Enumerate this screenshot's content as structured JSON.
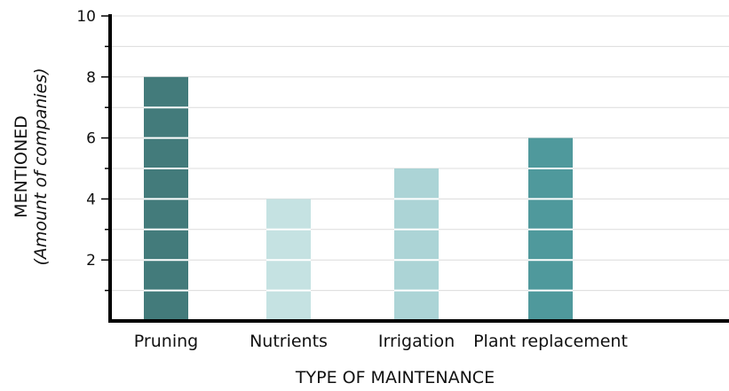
{
  "chart_data": {
    "type": "bar",
    "categories": [
      "Pruning",
      "Nutrients",
      "Irrigation",
      "Plant replacement"
    ],
    "values": [
      8,
      4,
      5,
      6
    ],
    "colors": [
      "#437b7b",
      "#c5e2e2",
      "#acd4d6",
      "#4f999c"
    ],
    "title": "",
    "xlabel": "TYPE OF MAINTENANCE",
    "ylabel_line1": "MENTIONED",
    "ylabel_line2": "(Amount of companies)",
    "ylim": [
      0,
      10
    ],
    "yticks": [
      2,
      4,
      6,
      8,
      10
    ],
    "grid": true,
    "bar_segment_step": 1
  }
}
